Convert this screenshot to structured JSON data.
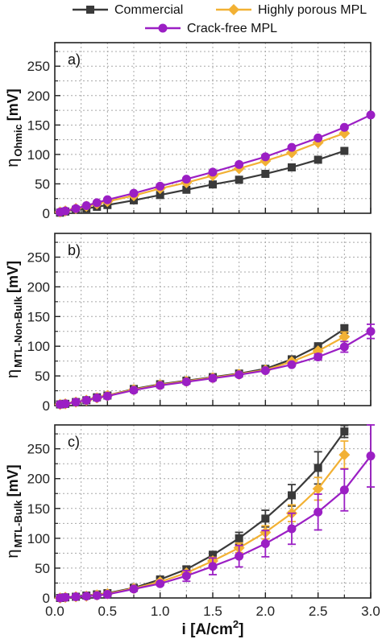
{
  "colors": {
    "commercial": "#3a3a3a",
    "porous": "#f2b134",
    "crackfree": "#9b1fc4",
    "grid": "#a8a8a8"
  },
  "legend": {
    "items": [
      {
        "label": "Commercial",
        "color": "#3a3a3a",
        "marker": "square"
      },
      {
        "label": "Highly porous MPL",
        "color": "#f2b134",
        "marker": "diamond"
      },
      {
        "label": "Crack-free MPL",
        "color": "#9b1fc4",
        "marker": "circle"
      }
    ]
  },
  "chart_data": [
    {
      "type": "line",
      "panel_label": "a)",
      "ylabel": {
        "symbol": "η",
        "subscript": "Ohmic",
        "unit": "[mV]"
      },
      "xlim": [
        0.0,
        3.0
      ],
      "ylim": [
        0,
        290
      ],
      "xticks": [
        0.0,
        0.5,
        1.0,
        1.5,
        2.0,
        2.5,
        3.0
      ],
      "yticks": [
        0,
        50,
        100,
        150,
        200,
        250
      ],
      "grid": true,
      "series": [
        {
          "name": "Commercial",
          "marker": "square",
          "x": [
            0.05,
            0.1,
            0.2,
            0.3,
            0.4,
            0.5,
            0.75,
            1.0,
            1.25,
            1.5,
            1.75,
            2.0,
            2.25,
            2.5,
            2.75
          ],
          "y": [
            1,
            3,
            6,
            8,
            11,
            14,
            22,
            31,
            40,
            49,
            57,
            67,
            78,
            91,
            106
          ]
        },
        {
          "name": "Highly porous MPL",
          "marker": "diamond",
          "x": [
            0.05,
            0.1,
            0.2,
            0.3,
            0.4,
            0.5,
            0.75,
            1.0,
            1.25,
            1.5,
            1.75,
            2.0,
            2.25,
            2.5,
            2.75
          ],
          "y": [
            2,
            4,
            8,
            12,
            16,
            20,
            30,
            42,
            52,
            64,
            76,
            89,
            103,
            120,
            136
          ]
        },
        {
          "name": "Crack-free MPL",
          "marker": "circle",
          "x": [
            0.05,
            0.1,
            0.2,
            0.3,
            0.4,
            0.5,
            0.75,
            1.0,
            1.25,
            1.5,
            1.75,
            2.0,
            2.25,
            2.5,
            2.75,
            3.0
          ],
          "y": [
            2,
            4,
            8,
            13,
            18,
            23,
            34,
            46,
            58,
            70,
            83,
            96,
            112,
            128,
            146,
            167
          ]
        }
      ]
    },
    {
      "type": "line",
      "panel_label": "b)",
      "ylabel": {
        "symbol": "η",
        "subscript": "MTL-Non-Bulk",
        "unit": "[mV]"
      },
      "xlim": [
        0.0,
        3.0
      ],
      "ylim": [
        0,
        290
      ],
      "xticks": [
        0.0,
        0.5,
        1.0,
        1.5,
        2.0,
        2.5,
        3.0
      ],
      "yticks": [
        0,
        50,
        100,
        150,
        200,
        250
      ],
      "grid": true,
      "series": [
        {
          "name": "Commercial",
          "marker": "square",
          "x": [
            0.05,
            0.1,
            0.2,
            0.3,
            0.4,
            0.5,
            0.75,
            1.0,
            1.25,
            1.5,
            1.75,
            2.0,
            2.25,
            2.5,
            2.75
          ],
          "y": [
            2,
            3,
            6,
            9,
            14,
            17,
            28,
            36,
            42,
            48,
            54,
            62,
            78,
            100,
            129
          ],
          "err": [
            0,
            0,
            0,
            0,
            0,
            0,
            0,
            0,
            0,
            0,
            0,
            0,
            0,
            0,
            7
          ]
        },
        {
          "name": "Highly porous MPL",
          "marker": "diamond",
          "x": [
            0.05,
            0.1,
            0.2,
            0.3,
            0.4,
            0.5,
            0.75,
            1.0,
            1.25,
            1.5,
            1.75,
            2.0,
            2.25,
            2.5,
            2.75
          ],
          "y": [
            2,
            3,
            6,
            9,
            13,
            17,
            27,
            35,
            41,
            47,
            53,
            60,
            74,
            92,
            116
          ],
          "err": [
            0,
            0,
            0,
            0,
            0,
            0,
            0,
            0,
            0,
            0,
            0,
            0,
            0,
            0,
            8
          ]
        },
        {
          "name": "Crack-free MPL",
          "marker": "circle",
          "x": [
            0.05,
            0.1,
            0.2,
            0.3,
            0.4,
            0.5,
            0.75,
            1.0,
            1.25,
            1.5,
            1.75,
            2.0,
            2.25,
            2.5,
            2.75,
            3.0
          ],
          "y": [
            2,
            3,
            6,
            9,
            13,
            16,
            26,
            34,
            40,
            46,
            52,
            59,
            69,
            82,
            99,
            125
          ],
          "err": [
            0,
            0,
            0,
            0,
            0,
            0,
            0,
            0,
            0,
            0,
            0,
            0,
            0,
            5,
            9,
            12
          ]
        }
      ]
    },
    {
      "type": "line",
      "panel_label": "c)",
      "ylabel": {
        "symbol": "η",
        "subscript": "MTL-Bulk",
        "unit": "[mV]"
      },
      "xlabel": {
        "main": "i [A/cm",
        "sup": "2",
        "end": "]"
      },
      "xlim": [
        0.0,
        3.0
      ],
      "ylim": [
        0,
        290
      ],
      "xticks": [
        0.0,
        0.5,
        1.0,
        1.5,
        2.0,
        2.5,
        3.0
      ],
      "xtick_labels": [
        "0.0",
        "0.5",
        "1.0",
        "1.5",
        "2.0",
        "2.5",
        "3.0"
      ],
      "yticks": [
        0,
        50,
        100,
        150,
        200,
        250
      ],
      "grid": true,
      "series": [
        {
          "name": "Commercial",
          "marker": "square",
          "x": [
            0.05,
            0.1,
            0.2,
            0.3,
            0.4,
            0.5,
            0.75,
            1.0,
            1.25,
            1.5,
            1.75,
            2.0,
            2.25,
            2.5,
            2.75
          ],
          "y": [
            0,
            1,
            2,
            4,
            6,
            8,
            17,
            31,
            48,
            72,
            100,
            133,
            172,
            218,
            279
          ],
          "err": [
            0,
            0,
            0,
            0,
            0,
            0,
            2,
            3,
            5,
            6,
            10,
            14,
            18,
            27,
            10
          ]
        },
        {
          "name": "Highly porous MPL",
          "marker": "diamond",
          "x": [
            0.05,
            0.1,
            0.2,
            0.3,
            0.4,
            0.5,
            0.75,
            1.0,
            1.25,
            1.5,
            1.75,
            2.0,
            2.25,
            2.5,
            2.75
          ],
          "y": [
            0,
            1,
            2,
            3,
            5,
            7,
            16,
            27,
            42,
            62,
            84,
            110,
            142,
            183,
            240
          ],
          "err": [
            0,
            0,
            0,
            0,
            0,
            0,
            2,
            3,
            4,
            6,
            8,
            11,
            14,
            19,
            23
          ]
        },
        {
          "name": "Crack-free MPL",
          "marker": "circle",
          "x": [
            0.05,
            0.1,
            0.2,
            0.3,
            0.4,
            0.5,
            0.75,
            1.0,
            1.25,
            1.5,
            1.75,
            2.0,
            2.25,
            2.5,
            2.75,
            3.0
          ],
          "y": [
            0,
            1,
            2,
            3,
            4,
            6,
            15,
            24,
            37,
            53,
            70,
            91,
            116,
            144,
            181,
            238
          ],
          "err": [
            0,
            0,
            0,
            0,
            0,
            0,
            2,
            3,
            9,
            14,
            18,
            22,
            26,
            30,
            35,
            52
          ]
        }
      ]
    }
  ]
}
